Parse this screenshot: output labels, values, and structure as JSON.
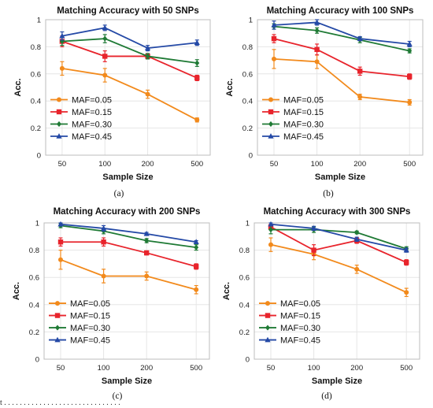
{
  "footer_text": "t . . . . . . . . . . . . . . . . . . . . . . . . . . . . . .",
  "chart_data": [
    {
      "type": "line",
      "panel_caption": "(a)",
      "title": "Matching Accuracy with 50 SNPs",
      "xlabel": "Sample Size",
      "ylabel": "Acc.",
      "categories": [
        "50",
        "100",
        "200",
        "500"
      ],
      "ylim": [
        0,
        1
      ],
      "yticks": [
        "0",
        "0.2",
        "0.4",
        "0.6",
        "0.8",
        "1"
      ],
      "grid": true,
      "legend_position": "bottom-left",
      "series": [
        {
          "name": "MAF=0.05",
          "color": "#f28a1c",
          "marker": "circle",
          "values": [
            0.64,
            0.59,
            0.45,
            0.26
          ],
          "errors": [
            0.05,
            0.05,
            0.03,
            0.015
          ]
        },
        {
          "name": "MAF=0.15",
          "color": "#e8242c",
          "marker": "square",
          "values": [
            0.84,
            0.73,
            0.73,
            0.57
          ],
          "errors": [
            0.04,
            0.04,
            0.02,
            0.02
          ]
        },
        {
          "name": "MAF=0.30",
          "color": "#1f7a35",
          "marker": "diamond",
          "values": [
            0.84,
            0.86,
            0.73,
            0.68
          ],
          "errors": [
            0.03,
            0.03,
            0.02,
            0.025
          ]
        },
        {
          "name": "MAF=0.45",
          "color": "#2449a6",
          "marker": "triangle",
          "values": [
            0.88,
            0.94,
            0.79,
            0.83
          ],
          "errors": [
            0.03,
            0.02,
            0.02,
            0.02
          ]
        }
      ]
    },
    {
      "type": "line",
      "panel_caption": "(b)",
      "title": "Matching Accuracy with 100 SNPs",
      "xlabel": "Sample Size",
      "ylabel": "Acc.",
      "categories": [
        "50",
        "100",
        "200",
        "500"
      ],
      "ylim": [
        0,
        1
      ],
      "yticks": [
        "0",
        "0.2",
        "0.4",
        "0.6",
        "0.8",
        "1"
      ],
      "grid": true,
      "legend_position": "bottom-left",
      "series": [
        {
          "name": "MAF=0.05",
          "color": "#f28a1c",
          "marker": "circle",
          "values": [
            0.71,
            0.69,
            0.43,
            0.39
          ],
          "errors": [
            0.07,
            0.05,
            0.02,
            0.02
          ]
        },
        {
          "name": "MAF=0.15",
          "color": "#e8242c",
          "marker": "square",
          "values": [
            0.86,
            0.78,
            0.62,
            0.58
          ],
          "errors": [
            0.03,
            0.04,
            0.03,
            0.02
          ]
        },
        {
          "name": "MAF=0.30",
          "color": "#1f7a35",
          "marker": "diamond",
          "values": [
            0.95,
            0.92,
            0.85,
            0.77
          ],
          "errors": [
            0.02,
            0.02,
            0.02,
            0.015
          ]
        },
        {
          "name": "MAF=0.45",
          "color": "#2449a6",
          "marker": "triangle",
          "values": [
            0.96,
            0.98,
            0.86,
            0.82
          ],
          "errors": [
            0.03,
            0.02,
            0.015,
            0.02
          ]
        }
      ]
    },
    {
      "type": "line",
      "panel_caption": "(c)",
      "title": "Matching Accuracy with 200 SNPs",
      "xlabel": "Sample Size",
      "ylabel": "Acc.",
      "categories": [
        "50",
        "100",
        "200",
        "500"
      ],
      "ylim": [
        0,
        1
      ],
      "yticks": [
        "0",
        "0.2",
        "0.4",
        "0.6",
        "0.8",
        "1"
      ],
      "grid": true,
      "legend_position": "bottom-left",
      "series": [
        {
          "name": "MAF=0.05",
          "color": "#f28a1c",
          "marker": "circle",
          "values": [
            0.73,
            0.61,
            0.61,
            0.51
          ],
          "errors": [
            0.07,
            0.05,
            0.03,
            0.03
          ]
        },
        {
          "name": "MAF=0.15",
          "color": "#e8242c",
          "marker": "square",
          "values": [
            0.86,
            0.86,
            0.78,
            0.68
          ],
          "errors": [
            0.03,
            0.03,
            0.015,
            0.02
          ]
        },
        {
          "name": "MAF=0.30",
          "color": "#1f7a35",
          "marker": "diamond",
          "values": [
            0.98,
            0.94,
            0.87,
            0.82
          ],
          "errors": [
            0.015,
            0.02,
            0.015,
            0.02
          ]
        },
        {
          "name": "MAF=0.45",
          "color": "#2449a6",
          "marker": "triangle",
          "values": [
            0.99,
            0.96,
            0.92,
            0.86
          ],
          "errors": [
            0.01,
            0.02,
            0.01,
            0.01
          ]
        }
      ]
    },
    {
      "type": "line",
      "panel_caption": "(d)",
      "title": "Matching Accuracy with 300 SNPs",
      "xlabel": "Sample Size",
      "ylabel": "Acc.",
      "categories": [
        "50",
        "100",
        "200",
        "500"
      ],
      "ylim": [
        0,
        1
      ],
      "yticks": [
        "0",
        "0.2",
        "0.4",
        "0.6",
        "0.8",
        "1"
      ],
      "grid": true,
      "legend_position": "bottom-left",
      "series": [
        {
          "name": "MAF=0.05",
          "color": "#f28a1c",
          "marker": "circle",
          "values": [
            0.84,
            0.77,
            0.66,
            0.49
          ],
          "errors": [
            0.05,
            0.04,
            0.03,
            0.03
          ]
        },
        {
          "name": "MAF=0.15",
          "color": "#e8242c",
          "marker": "square",
          "values": [
            0.97,
            0.8,
            0.87,
            0.71
          ],
          "errors": [
            0.02,
            0.04,
            0.02,
            0.02
          ]
        },
        {
          "name": "MAF=0.30",
          "color": "#1f7a35",
          "marker": "diamond",
          "values": [
            0.95,
            0.95,
            0.93,
            0.81
          ],
          "errors": [
            0.03,
            0.02,
            0.01,
            0.015
          ]
        },
        {
          "name": "MAF=0.45",
          "color": "#2449a6",
          "marker": "triangle",
          "values": [
            0.99,
            0.96,
            0.88,
            0.8
          ],
          "errors": [
            0.01,
            0.015,
            0.015,
            0.015
          ]
        }
      ]
    }
  ]
}
